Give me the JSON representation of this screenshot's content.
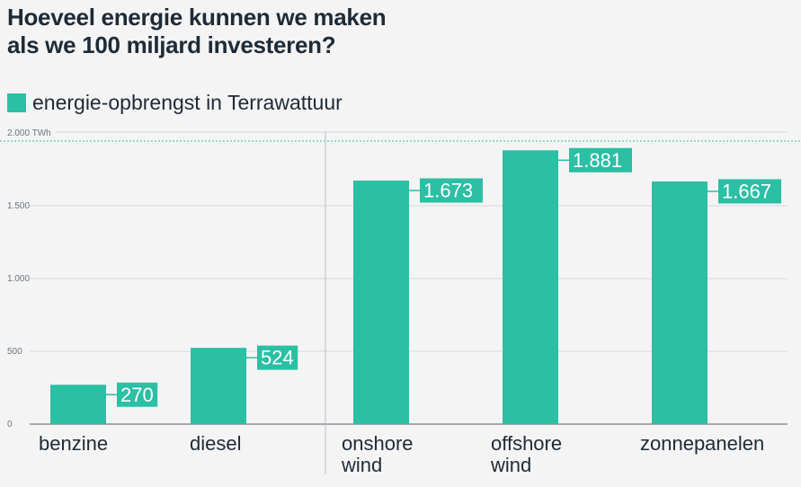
{
  "header": {
    "title_line1": "Hoeveel energie kunnen we maken",
    "title_line2": "als we 100 miljard investeren?"
  },
  "colors": {
    "bar": "#2bbfa4",
    "text": "#1f2a35",
    "grid": "#d4d7da"
  },
  "chart_data": {
    "type": "bar",
    "title": "Hoeveel energie kunnen we maken als we 100 miljard investeren?",
    "legend": [
      {
        "name": "energie-opbrengst in Terrawattuur",
        "color": "#2bbfa4"
      }
    ],
    "legend_position": "top-left",
    "categories": [
      [
        "benzine"
      ],
      [
        "diesel"
      ],
      [
        "onshore",
        "wind"
      ],
      [
        "offshore",
        "wind"
      ],
      [
        "zonnepanelen"
      ]
    ],
    "series": [
      {
        "name": "energie-opbrengst in Terrawattuur",
        "values": [
          270,
          524,
          1673,
          1881,
          1667
        ]
      }
    ],
    "data_labels": [
      "270",
      "524",
      "1.673",
      "1.881",
      "1.667"
    ],
    "yticks": [
      0,
      500,
      1000,
      1500,
      2000
    ],
    "ytick_labels": [
      "0",
      "500",
      "1.000",
      "1.500",
      "2.000 TWh"
    ],
    "ylim": [
      0,
      2000
    ],
    "grid": true
  }
}
